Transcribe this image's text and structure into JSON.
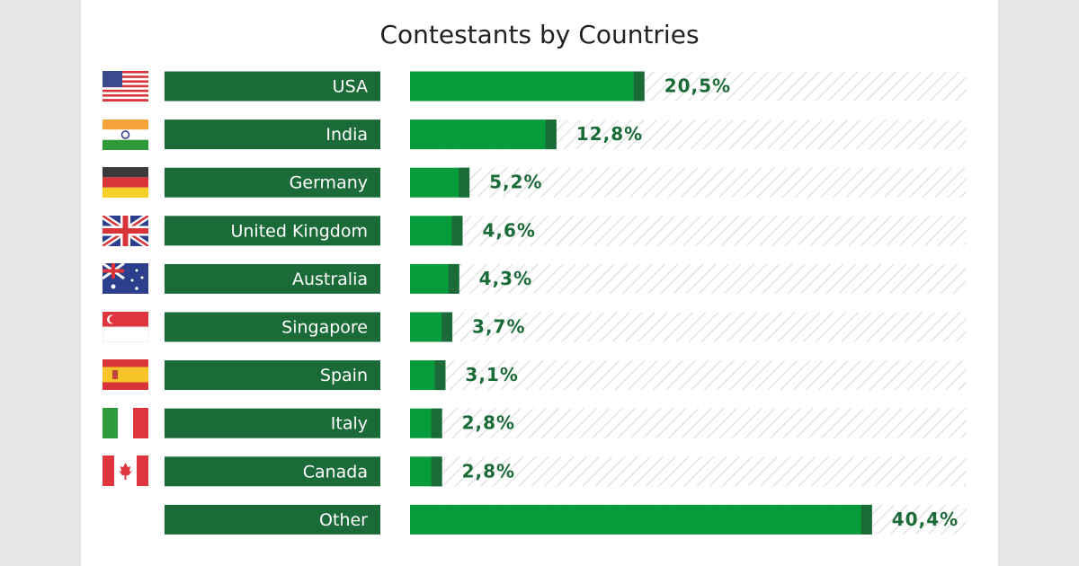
{
  "chart_data": {
    "type": "bar",
    "orientation": "horizontal",
    "title": "Contestants by Countries",
    "categories": [
      "USA",
      "India",
      "Germany",
      "United Kingdom",
      "Australia",
      "Singapore",
      "Spain",
      "Italy",
      "Canada",
      "Other"
    ],
    "values": [
      20.5,
      12.8,
      5.2,
      4.6,
      4.3,
      3.7,
      3.1,
      2.8,
      2.8,
      40.4
    ],
    "value_labels": [
      "20,5%",
      "12,8%",
      "5,2%",
      "4,6%",
      "4,3%",
      "3,7%",
      "3,1%",
      "2,8%",
      "2,8%",
      "40,4%"
    ],
    "color": "#079c3b",
    "label_color": "#1b6b38"
  }
}
